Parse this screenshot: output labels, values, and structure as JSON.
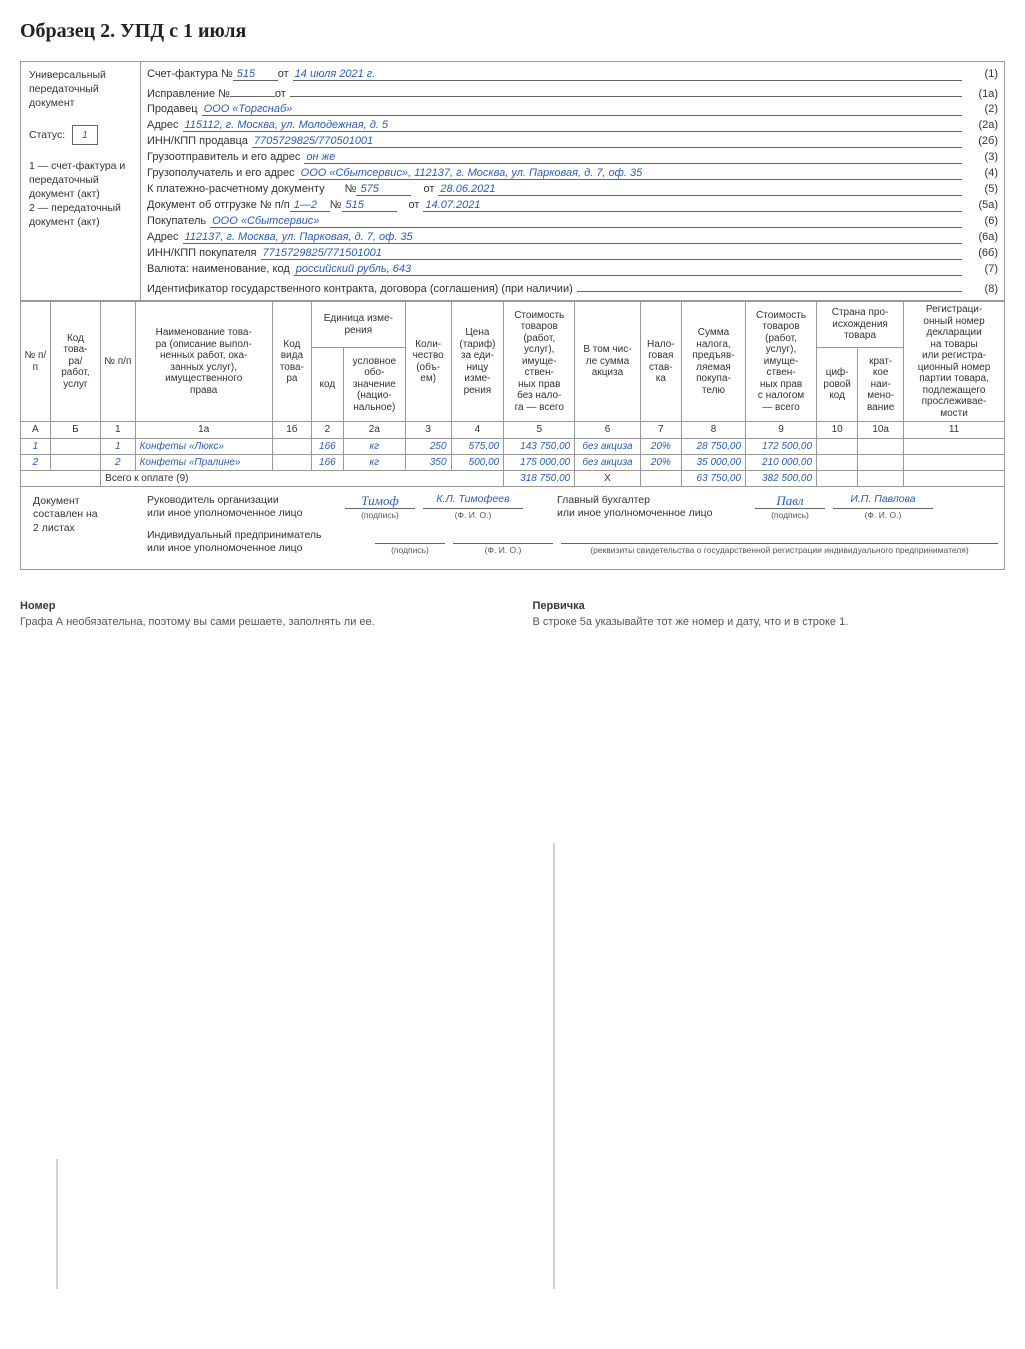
{
  "page_title": "Образец 2. УПД с 1 июля",
  "left_panel": {
    "upd_label": "Универсальный передаточный документ",
    "status_label": "Статус:",
    "status_value": "1",
    "note1": "1 — счет-фактура и передаточный документ (акт)",
    "note2": "2 — передаточный документ (акт)"
  },
  "fields": {
    "r1": {
      "l": "Счет-фактура №",
      "v1": "515",
      "mid": "от",
      "v2": "14 июля 2021 г.",
      "n": "(1)"
    },
    "r1a": {
      "l": "Исправление №",
      "v1": "",
      "mid": "от",
      "v2": "",
      "n": "(1а)"
    },
    "r2": {
      "l": "Продавец",
      "v": "ООО «Торгснаб»",
      "n": "(2)"
    },
    "r2a": {
      "l": "Адрес",
      "v": "115112, г. Москва, ул. Молодежная, д. 5",
      "n": "(2а)"
    },
    "r2b": {
      "l": "ИНН/КПП продавца",
      "v": "7705729825/770501001",
      "n": "(2б)"
    },
    "r3": {
      "l": "Грузоотправитель и его адрес",
      "v": "он же",
      "n": "(3)"
    },
    "r4": {
      "l": "Грузополучатель и его адрес",
      "v": "ООО «Сбытсервис», 112137, г. Москва, ул. Парковая, д. 7, оф. 35",
      "n": "(4)"
    },
    "r5": {
      "l": "К платежно-расчетному документу",
      "mid": "№",
      "v1": "575",
      "mid2": "от",
      "v2": "28.06.2021",
      "n": "(5)"
    },
    "r5a": {
      "l": "Документ об отгрузке № п/п",
      "v1": "1—2",
      "mid": "№",
      "v2": "515",
      "mid2": "от",
      "v3": "14.07.2021",
      "n": "(5а)"
    },
    "r6": {
      "l": "Покупатель",
      "v": "ООО «Сбытсервис»",
      "n": "(6)"
    },
    "r6a": {
      "l": "Адрес",
      "v": "112137, г. Москва, ул. Парковая, д. 7, оф. 35",
      "n": "(6а)"
    },
    "r6b": {
      "l": "ИНН/КПП покупателя",
      "v": "7715729825/771501001",
      "n": "(6б)"
    },
    "r7": {
      "l": "Валюта: наименование, код",
      "v": "российский рубль, 643",
      "n": "(7)"
    },
    "r8": {
      "l": "Идентификатор государственного контракта, договора (соглашения) (при наличии)",
      "v": "",
      "n": "(8)"
    }
  },
  "table": {
    "headers": {
      "c0a": "№ п/п",
      "c0b": "Код това-\nра/\nработ,\nуслуг",
      "c1": "№ п/п",
      "c1a": "Наименование това-\nра (описание выпол-\nненных работ, ока-\nзанных услуг),\nимущественного\nправа",
      "c1b": "Код\nвида\nтова-\nра",
      "c2top": "Единица изме-\nрения",
      "c2": "код",
      "c2a": "условное\nобо-\nзначение\n(нацио-\nнальное)",
      "c3": "Коли-\nчество\n(объ-\nем)",
      "c4": "Цена\n(тариф)\nза еди-\nницу\nизме-\nрения",
      "c5": "Стоимость\nтоваров\n(работ,\nуслуг),\nимуще-\nствен-\nных прав\nбез нало-\nга — всего",
      "c6": "В том чис-\nле сумма\nакциза",
      "c7": "Нало-\nговая\nстав-\nка",
      "c8": "Сумма\nналога,\nпредъяв-\nляемая\nпокупа-\nтелю",
      "c9": "Стоимость\nтоваров\n(работ,\nуслуг),\nимуще-\nствен-\nных прав\nс налогом\n— всего",
      "c10top": "Страна про-\nисхождения\nтовара",
      "c10": "циф-\nровой\nкод",
      "c10a": "крат-\nкое\nнаи-\nмено-\nвание",
      "c11": "Регистраци-\nонный номер\nдекларации\nна товары\nили регистра-\nционный номер\nпартии товара,\nподлежащего\nпрослеживае-\nмости"
    },
    "subhdr": {
      "a": "А",
      "b": "Б",
      "c1": "1",
      "c1a": "1а",
      "c1b": "1б",
      "c2": "2",
      "c2a": "2а",
      "c3": "3",
      "c4": "4",
      "c5": "5",
      "c6": "6",
      "c7": "7",
      "c8": "8",
      "c9": "9",
      "c10": "10",
      "c10a": "10а",
      "c11": "11"
    },
    "rows": [
      {
        "a": "1",
        "b": "",
        "n": "1",
        "name": "Конфеты «Люкс»",
        "kind": "",
        "code": "166",
        "unit": "кг",
        "qty": "250",
        "price": "575,00",
        "sum_no_tax": "143 750,00",
        "excise": "без акциза",
        "rate": "20%",
        "tax": "28 750,00",
        "sum_tax": "172 500,00",
        "c10": "",
        "c10a": "",
        "c11": ""
      },
      {
        "a": "2",
        "b": "",
        "n": "2",
        "name": "Конфеты «Пралине»",
        "kind": "",
        "code": "166",
        "unit": "кг",
        "qty": "350",
        "price": "500,00",
        "sum_no_tax": "175 000,00",
        "excise": "без акциза",
        "rate": "20%",
        "tax": "35 000,00",
        "sum_tax": "210 000,00",
        "c10": "",
        "c10a": "",
        "c11": ""
      }
    ],
    "total": {
      "label": "Всего к оплате (9)",
      "sum_no_tax": "318 750,00",
      "excise": "Х",
      "tax": "63 750,00",
      "sum_tax": "382 500,00"
    }
  },
  "signatures": {
    "doc_pages": {
      "l1": "Документ",
      "l2": "составлен на",
      "v": "2",
      "l3": "листах"
    },
    "head": {
      "l": "Руководитель организации\nили иное уполномоченное лицо",
      "sign": "Тимоф",
      "fio": "К.Л. Тимофеев"
    },
    "acc": {
      "l": "Главный бухгалтер\nили иное уполномоченное лицо",
      "sign": "Павл",
      "fio": "И.П. Павлова"
    },
    "ip": {
      "l": "Индивидуальный предприниматель\nили иное уполномоченное лицо"
    },
    "caption_sign": "(подпись)",
    "caption_fio": "(Ф. И. О.)",
    "caption_req": "(реквизиты свидетельства о государственной регистрации индивидуального предпринимателя)"
  },
  "callouts": {
    "left": {
      "title": "Номер",
      "text": "Графа А необязательна, поэтому вы сами решаете, заполнять ли ее."
    },
    "right": {
      "title": "Первичка",
      "text": "В строке 5а указывайте тот же номер и дату, что и в строке 1."
    }
  },
  "colors": {
    "accent": "#2a5db0",
    "border": "#999999",
    "text": "#333333"
  }
}
